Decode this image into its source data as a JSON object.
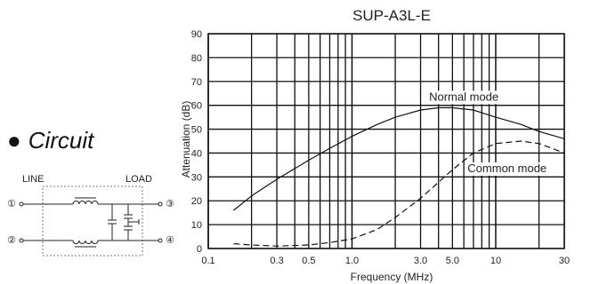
{
  "circuit": {
    "heading": "Circuit",
    "bullet": "●",
    "line_label": "LINE",
    "load_label": "LOAD",
    "terminals": [
      "①",
      "②",
      "③",
      "④"
    ]
  },
  "chart_data": {
    "type": "line",
    "title": "SUP-A3L-E",
    "xlabel": "Frequency (MHz)",
    "ylabel": "Attenuation (dB)",
    "x_scale": "log",
    "xlim": [
      0.1,
      30
    ],
    "ylim": [
      0,
      90
    ],
    "grid": true,
    "x_ticks": [
      0.1,
      0.3,
      0.5,
      1.0,
      3.0,
      5.0,
      10,
      30
    ],
    "x_tick_labels": [
      "0.1",
      "0.3",
      "0.5",
      "1.0",
      "3.0",
      "5.0",
      "10",
      "30"
    ],
    "y_ticks": [
      0,
      10,
      20,
      30,
      40,
      50,
      60,
      70,
      80,
      90
    ],
    "y_tick_labels": [
      "0",
      "10",
      "20",
      "30",
      "40",
      "50",
      "60",
      "70",
      "80",
      "90"
    ],
    "series": [
      {
        "name": "Normal mode",
        "style": "solid",
        "color": "#111111",
        "x": [
          0.15,
          0.2,
          0.3,
          0.5,
          0.7,
          1.0,
          1.5,
          2.0,
          3.0,
          4.0,
          5.0,
          7.0,
          10,
          15,
          20,
          30
        ],
        "y": [
          16,
          22,
          29,
          37,
          42,
          47,
          52,
          55,
          58,
          59,
          59,
          58,
          55,
          52,
          49,
          46
        ]
      },
      {
        "name": "Common mode",
        "style": "dashed",
        "color": "#111111",
        "x": [
          0.15,
          0.2,
          0.3,
          0.5,
          0.7,
          1.0,
          1.5,
          2.0,
          3.0,
          5.0,
          7.0,
          10,
          15,
          20,
          30
        ],
        "y": [
          2,
          1.5,
          1,
          1.5,
          2.5,
          4,
          8,
          13,
          21,
          33,
          40,
          44,
          45,
          44,
          40
        ]
      }
    ],
    "annotations": [
      {
        "text": "Normal mode",
        "x": 6.0,
        "y": 62
      },
      {
        "text": "Common mode",
        "x": 12.0,
        "y": 32
      }
    ]
  }
}
